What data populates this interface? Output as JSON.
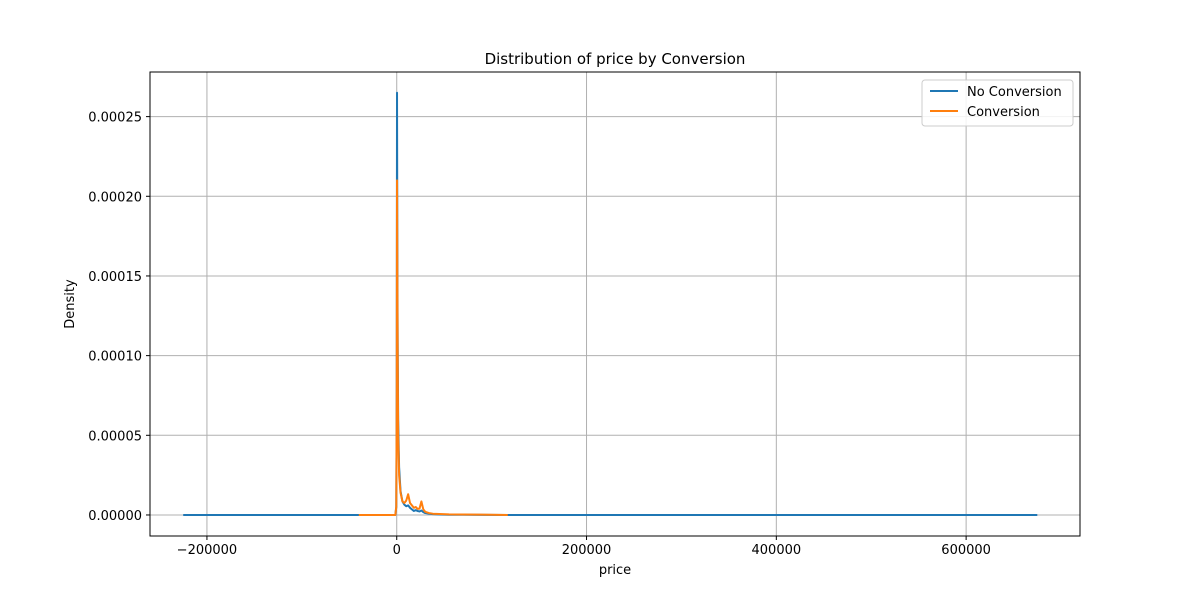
{
  "chart_data": {
    "type": "line",
    "title": "Distribution of price by Conversion",
    "xlabel": "price",
    "ylabel": "Density",
    "xlim": [
      -260000,
      720000
    ],
    "ylim": [
      -1.32e-05,
      0.000278
    ],
    "x_ticks": [
      -200000,
      0,
      200000,
      400000,
      600000
    ],
    "x_tick_labels": [
      "−200000",
      "0",
      "200000",
      "400000",
      "600000"
    ],
    "y_ticks": [
      0,
      5e-05,
      0.0001,
      0.00015,
      0.0002,
      0.00025
    ],
    "y_tick_labels": [
      "0.00000",
      "0.00005",
      "0.00010",
      "0.00015",
      "0.00020",
      "0.00025"
    ],
    "grid": true,
    "legend_position": "top-right",
    "series": [
      {
        "name": "No Conversion",
        "color": "#1f77b4",
        "x": [
          -225000,
          -1500,
          -500,
          0,
          300,
          600,
          1000,
          1500,
          2500,
          4000,
          6000,
          8000,
          10000,
          12000,
          14000,
          16000,
          18000,
          20000,
          22000,
          24000,
          26000,
          28000,
          30000,
          34000,
          38000,
          45000,
          55000,
          70000,
          90000,
          120000,
          675000
        ],
        "y": [
          0,
          0,
          5e-06,
          8e-05,
          0.000265,
          0.00018,
          0.00011,
          6e-05,
          3e-05,
          1.5e-05,
          8.5e-06,
          6.5e-06,
          5.5e-06,
          6e-06,
          4.5e-06,
          3.5e-06,
          2.5e-06,
          3e-06,
          2.5e-06,
          2.2e-06,
          2.8e-06,
          1.8e-06,
          1.2e-06,
          8e-07,
          5e-07,
          3e-07,
          1.5e-07,
          1e-07,
          5e-08,
          0,
          0
        ]
      },
      {
        "name": "Conversion",
        "color": "#ff7f0e",
        "x": [
          -40000,
          -1500,
          -500,
          0,
          300,
          600,
          1000,
          1500,
          2500,
          4000,
          6000,
          8000,
          10000,
          12000,
          14000,
          16000,
          18000,
          20000,
          22000,
          24000,
          26000,
          28000,
          30000,
          34000,
          38000,
          45000,
          55000,
          70000,
          90000,
          100000,
          117000
        ],
        "y": [
          0,
          0,
          5e-06,
          7e-05,
          0.00021,
          0.00016,
          0.0001,
          5e-05,
          2.5e-05,
          1.4e-05,
          8.5e-06,
          7.5e-06,
          9e-06,
          1.3e-05,
          7.5e-06,
          6e-06,
          4.5e-06,
          5e-06,
          3.8e-06,
          4e-06,
          8.5e-06,
          3.5e-06,
          2e-06,
          1.2e-06,
          8e-07,
          6e-07,
          4e-07,
          3e-07,
          2e-07,
          1e-07,
          0
        ]
      }
    ]
  }
}
